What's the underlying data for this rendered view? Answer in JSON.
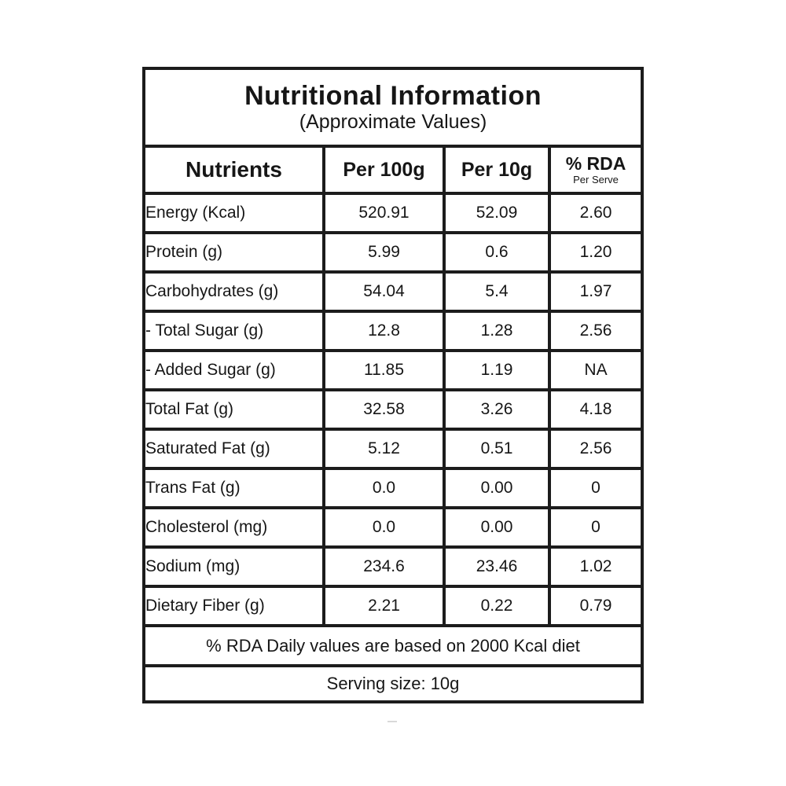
{
  "header": {
    "title": "Nutritional Information",
    "subtitle": "(Approximate Values)"
  },
  "columns": [
    {
      "label": "Nutrients"
    },
    {
      "label": "Per 100g"
    },
    {
      "label": "Per 10g"
    },
    {
      "label": "% RDA",
      "sublabel": "Per Serve"
    }
  ],
  "rows": [
    {
      "nutrient": "Energy (Kcal)",
      "per_100g": "520.91",
      "per_10g": "52.09",
      "rda": "2.60"
    },
    {
      "nutrient": "Protein (g)",
      "per_100g": "5.99",
      "per_10g": "0.6",
      "rda": "1.20"
    },
    {
      "nutrient": "Carbohydrates (g)",
      "per_100g": "54.04",
      "per_10g": "5.4",
      "rda": "1.97"
    },
    {
      "nutrient": "- Total Sugar (g)",
      "per_100g": "12.8",
      "per_10g": "1.28",
      "rda": "2.56"
    },
    {
      "nutrient": "- Added Sugar (g)",
      "per_100g": "11.85",
      "per_10g": "1.19",
      "rda": "NA"
    },
    {
      "nutrient": "Total Fat (g)",
      "per_100g": "32.58",
      "per_10g": "3.26",
      "rda": "4.18"
    },
    {
      "nutrient": "Saturated Fat (g)",
      "per_100g": "5.12",
      "per_10g": "0.51",
      "rda": "2.56"
    },
    {
      "nutrient": "Trans Fat (g)",
      "per_100g": "0.0",
      "per_10g": "0.00",
      "rda": "0"
    },
    {
      "nutrient": "Cholesterol (mg)",
      "per_100g": "0.0",
      "per_10g": "0.00",
      "rda": "0"
    },
    {
      "nutrient": "Sodium (mg)",
      "per_100g": "234.6",
      "per_10g": "23.46",
      "rda": "1.02"
    },
    {
      "nutrient": "Dietary Fiber (g)",
      "per_100g": "2.21",
      "per_10g": "0.22",
      "rda": "0.79"
    }
  ],
  "footer": {
    "rda_note": "% RDA Daily values are based on 2000 Kcal diet",
    "serving": "Serving size: 10g"
  },
  "colors": {
    "border": "#1c1c1c",
    "text": "#161616",
    "background": "#ffffff"
  }
}
